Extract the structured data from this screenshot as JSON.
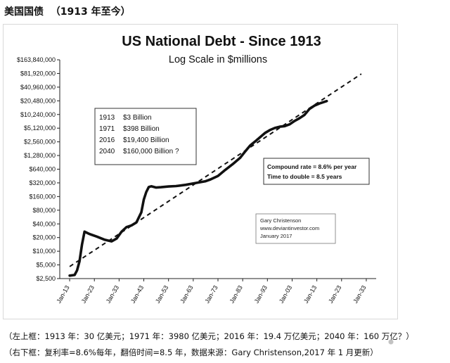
{
  "header": {
    "title": "美国国债  （1913 年至今）"
  },
  "chart_data": {
    "type": "line",
    "title": "US National Debt - Since 1913",
    "subtitle": "Log Scale in $millions",
    "xlabel": "",
    "ylabel": "",
    "yscale": "log",
    "y_ticks": [
      2500,
      5000,
      10000,
      20000,
      40000,
      80000,
      160000,
      320000,
      640000,
      1280000,
      2560000,
      5120000,
      10240000,
      20480000,
      40960000,
      81920000,
      163840000
    ],
    "y_tick_labels": [
      "$2,500",
      "$5,000",
      "$10,000",
      "$20,000",
      "$40,000",
      "$80,000",
      "$160,000",
      "$320,000",
      "$640,000",
      "$1,280,000",
      "$2,560,000",
      "$5,120,000",
      "$10,240,000",
      "$20,480,000",
      "$40,960,000",
      "$81,920,000",
      "$163,840,000"
    ],
    "x_ticks": [
      1913,
      1923,
      1933,
      1943,
      1953,
      1963,
      1973,
      1983,
      1993,
      2003,
      2013,
      2023,
      2033
    ],
    "x_tick_labels": [
      "Jan-13",
      "Jan-23",
      "Jan-33",
      "Jan-43",
      "Jan-53",
      "Jan-63",
      "Jan-73",
      "Jan-83",
      "Jan-93",
      "Jan-03",
      "Jan-13",
      "Jan-23",
      "Jan-33"
    ],
    "xlim": [
      1909,
      2037
    ],
    "ylim": [
      2500,
      163840000
    ],
    "grid": false,
    "series": [
      {
        "style": "solid",
        "x": [
          1913,
          1915,
          1916,
          1917,
          1918,
          1919,
          1921,
          1924,
          1927,
          1930,
          1932,
          1934,
          1936,
          1938,
          1940,
          1942,
          1943,
          1944,
          1945,
          1946,
          1948,
          1950,
          1953,
          1956,
          1960,
          1964,
          1968,
          1970,
          1973,
          1976,
          1979,
          1982,
          1984,
          1986,
          1988,
          1990,
          1992,
          1994,
          1996,
          1998,
          2000,
          2002,
          2004,
          2006,
          2008,
          2010,
          2012,
          2014,
          2016,
          2017
        ],
        "y": [
          2900,
          3000,
          3800,
          6000,
          14000,
          27000,
          24000,
          21000,
          18000,
          16500,
          19000,
          27000,
          34000,
          37000,
          43000,
          72000,
          137000,
          201000,
          260000,
          269000,
          252000,
          257000,
          266000,
          272000,
          290000,
          318000,
          348000,
          382000,
          455000,
          620000,
          830000,
          1140000,
          1570000,
          2120000,
          2600000,
          3230000,
          4000000,
          4640000,
          5180000,
          5520000,
          5670000,
          6230000,
          7380000,
          8500000,
          10000000,
          13560000,
          16000000,
          17800000,
          19400000,
          20200000
        ]
      },
      {
        "name": "Compound rate = 8.6% per year",
        "style": "dashed",
        "x": [
          1913,
          2031
        ],
        "y": [
          4600,
          80000000
        ]
      }
    ],
    "annotations": {
      "left_box": [
        {
          "year": "1913",
          "value": "$3 Billion"
        },
        {
          "year": "1971",
          "value": "$398 Billion"
        },
        {
          "year": "2016",
          "value": "$19,400 Billion"
        },
        {
          "year": "2040",
          "value": "$160,000 Billion ?"
        }
      ],
      "right_box": [
        "Compound rate = 8.6% per year",
        "Time to double = 8.5 years"
      ],
      "source_box": [
        "Gary Christenson",
        "www.deviantinvestor.com",
        "January 2017"
      ]
    }
  },
  "captions": {
    "line1": "（左上框：1913 年：30 亿美元；1971 年：3980 亿美元；2016 年：19.4 万亿美元；2040 年：160 万亿？）",
    "line2": "（右下框：复利率=8.6%每年，翻倍时间=8.5 年，数据来源：Gary Christenson,2017 年 1 月更新）"
  }
}
